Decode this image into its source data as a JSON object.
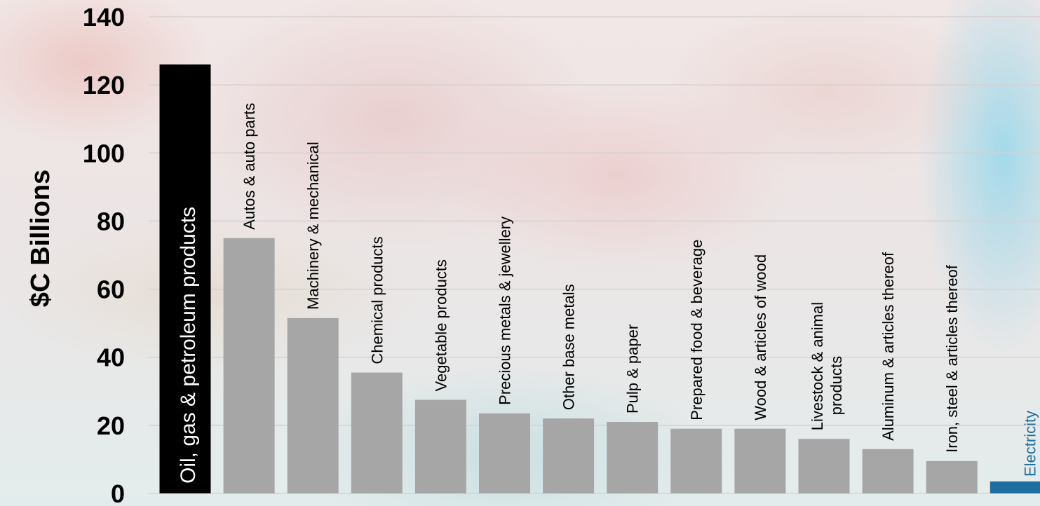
{
  "chart_data": {
    "type": "bar",
    "ylabel": "$C Billions",
    "ylim": [
      0,
      140
    ],
    "yticks": [
      0,
      20,
      40,
      60,
      80,
      100,
      120,
      140
    ],
    "grid": true,
    "categories": [
      "Oil, gas & petroleum products",
      "Autos & auto parts",
      "Machinery & mechanical",
      "Chemical products",
      "Vegetable products",
      "Precious metals & jewellery",
      "Other base metals",
      "Pulp & paper",
      "Prepared food & beverage",
      "Wood & articles of wood",
      "Livestock & animal products",
      "Aluminum & articles thereof",
      "Iron, steel & articles thereof",
      "Electricity"
    ],
    "values": [
      126,
      75,
      51.5,
      35.5,
      27.5,
      23.5,
      22,
      21,
      19,
      19,
      16,
      13,
      9.5,
      3.5
    ],
    "colors": {
      "highlight": "#000000",
      "default": "#a6a6a6",
      "electricity": "#1f6ea0",
      "grid": "#d8d0d0",
      "text": "#000000"
    }
  }
}
